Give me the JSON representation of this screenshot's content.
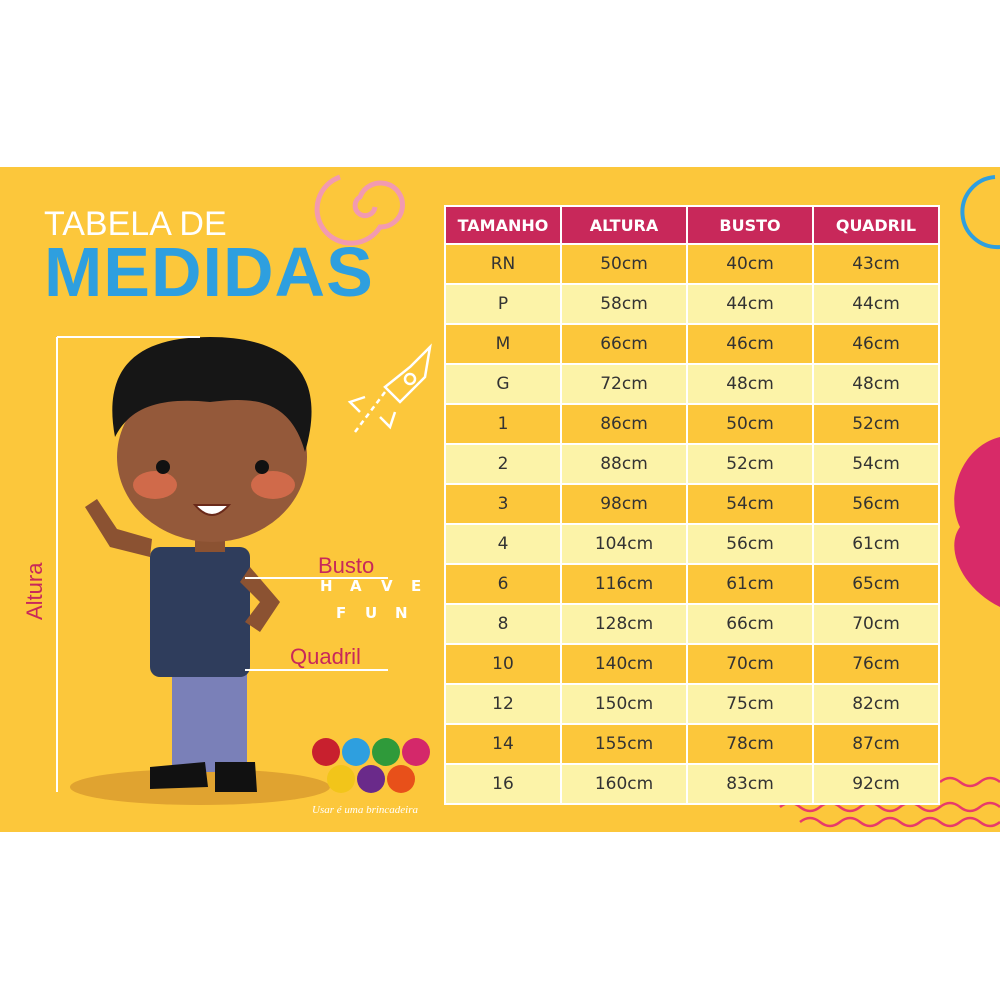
{
  "title": {
    "line1": "TABELA DE",
    "line2": "MEDIDAS"
  },
  "labels": {
    "height": "Altura",
    "bust": "Busto",
    "hip": "Quadril"
  },
  "brand": {
    "letters": [
      "H",
      "A",
      "V",
      "E",
      "F",
      "U",
      "N"
    ],
    "tagline": "Usar é uma brincadeira"
  },
  "table": {
    "headers": [
      "TAMANHO",
      "ALTURA",
      "BUSTO",
      "QUADRIL"
    ],
    "rows": [
      [
        "RN",
        "50cm",
        "40cm",
        "43cm"
      ],
      [
        "P",
        "58cm",
        "44cm",
        "44cm"
      ],
      [
        "M",
        "66cm",
        "46cm",
        "46cm"
      ],
      [
        "G",
        "72cm",
        "48cm",
        "48cm"
      ],
      [
        "1",
        "86cm",
        "50cm",
        "52cm"
      ],
      [
        "2",
        "88cm",
        "52cm",
        "54cm"
      ],
      [
        "3",
        "98cm",
        "54cm",
        "56cm"
      ],
      [
        "4",
        "104cm",
        "56cm",
        "61cm"
      ],
      [
        "6",
        "116cm",
        "61cm",
        "65cm"
      ],
      [
        "8",
        "128cm",
        "66cm",
        "70cm"
      ],
      [
        "10",
        "140cm",
        "70cm",
        "76cm"
      ],
      [
        "12",
        "150cm",
        "75cm",
        "82cm"
      ],
      [
        "14",
        "155cm",
        "78cm",
        "87cm"
      ],
      [
        "16",
        "160cm",
        "83cm",
        "92cm"
      ]
    ]
  },
  "colors": {
    "background": "#fcc73b",
    "header": "#c8285a",
    "row_light": "#fcf3a8",
    "title_blue": "#2e9fdf"
  }
}
